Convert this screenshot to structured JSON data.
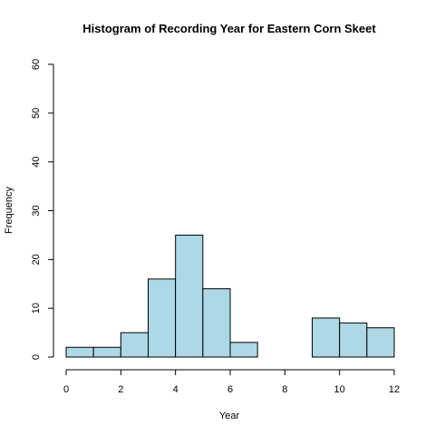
{
  "chart_data": {
    "type": "bar",
    "title": "Histogram of Recording Year for Eastern Corn Skeet",
    "xlabel": "Year",
    "ylabel": "Frequency",
    "bins": [
      {
        "start": 0,
        "end": 1,
        "count": 2
      },
      {
        "start": 1,
        "end": 2,
        "count": 2
      },
      {
        "start": 2,
        "end": 3,
        "count": 5
      },
      {
        "start": 3,
        "end": 4,
        "count": 16
      },
      {
        "start": 4,
        "end": 5,
        "count": 25
      },
      {
        "start": 5,
        "end": 6,
        "count": 14
      },
      {
        "start": 6,
        "end": 7,
        "count": 3
      },
      {
        "start": 7,
        "end": 8,
        "count": 0
      },
      {
        "start": 8,
        "end": 9,
        "count": 0
      },
      {
        "start": 9,
        "end": 10,
        "count": 8
      },
      {
        "start": 10,
        "end": 11,
        "count": 7
      },
      {
        "start": 11,
        "end": 12,
        "count": 6
      }
    ],
    "xlim": [
      0,
      12
    ],
    "ylim": [
      0,
      60
    ],
    "x_ticks": [
      "0",
      "2",
      "4",
      "6",
      "8",
      "10",
      "12"
    ],
    "y_ticks": [
      "0",
      "10",
      "20",
      "30",
      "40",
      "50",
      "60"
    ],
    "bar_color": "#add8e6",
    "grid": false,
    "legend": "none"
  }
}
